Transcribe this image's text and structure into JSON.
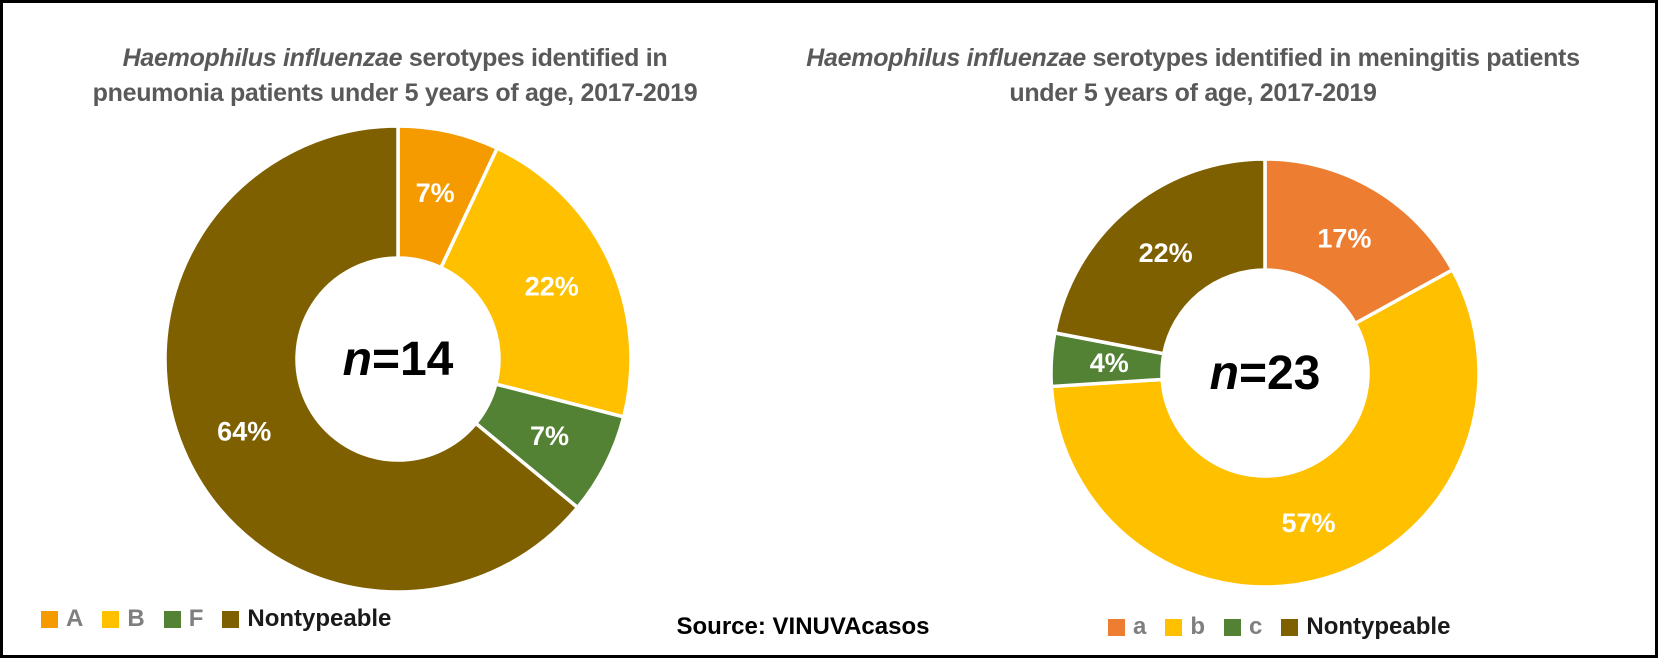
{
  "source_note": "Source: VINUVAcasos",
  "colors": {
    "frame": "#000000",
    "background": "#ffffff",
    "title_text": "#595959",
    "legend_letter": "#7f7f7f",
    "legend_nontypeable": "#1a1a1a",
    "slice_label_text": "#ffffff",
    "center_label_text": "#000000"
  },
  "chart_data": [
    {
      "type": "pie",
      "subtype": "donut",
      "title_italic": "Haemophilus influenzae",
      "title_rest": " serotypes identified in pneumonia patients under 5 years of age, 2017-2019",
      "categories": [
        "A",
        "B",
        "F",
        "Nontypeable"
      ],
      "values": [
        7,
        22,
        7,
        64
      ],
      "unit": "percent",
      "labels": [
        "7%",
        "22%",
        "7%",
        "64%"
      ],
      "colors": [
        "#F59B00",
        "#FFC000",
        "#548235",
        "#7F6000"
      ],
      "n": 14,
      "center_italic": "n",
      "center_rest": "=14",
      "start_angle_deg": 0,
      "direction": "clockwise",
      "legend_position": "bottom-left"
    },
    {
      "type": "pie",
      "subtype": "donut",
      "title_italic": "Haemophilus influenzae",
      "title_rest": " serotypes identified in meningitis patients under 5 years of age, 2017-2019",
      "categories": [
        "a",
        "b",
        "c",
        "Nontypeable"
      ],
      "values": [
        17,
        57,
        4,
        22
      ],
      "unit": "percent",
      "labels": [
        "17%",
        "57%",
        "4%",
        "22%"
      ],
      "colors": [
        "#ED7D31",
        "#FFC000",
        "#548235",
        "#7F6000"
      ],
      "n": 23,
      "center_italic": "n",
      "center_rest": "=23",
      "start_angle_deg": 0,
      "direction": "clockwise",
      "legend_position": "bottom-center"
    }
  ]
}
